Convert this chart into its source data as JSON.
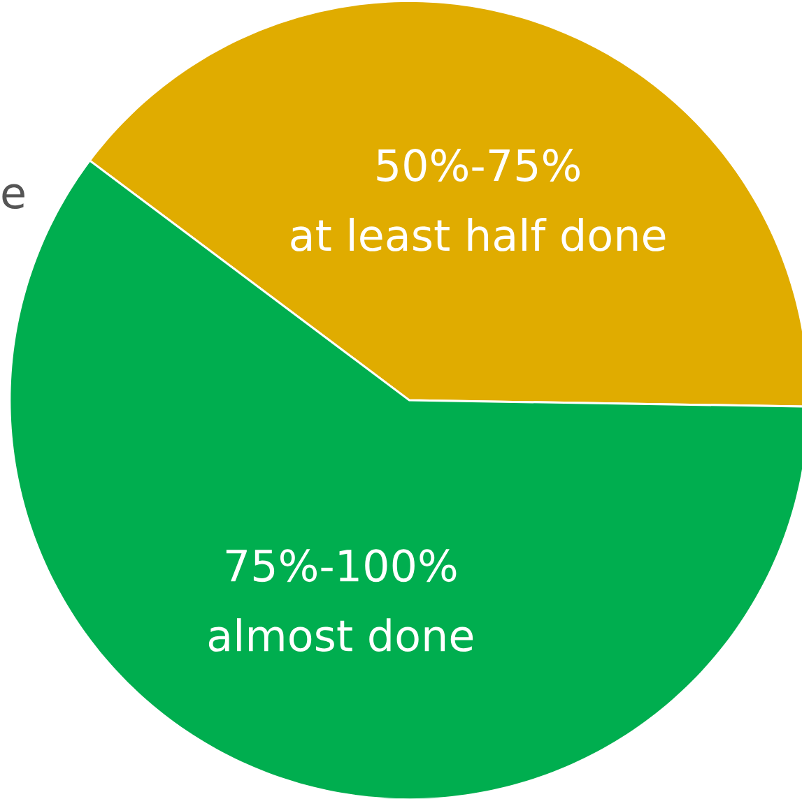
{
  "chart_data": {
    "type": "pie",
    "categories": [
      "50%-75%",
      "75%-100%"
    ],
    "values": [
      40,
      60
    ],
    "colors": [
      "#e0ac00",
      "#00ae4f"
    ],
    "annotations": [
      "at least half done",
      "almost done",
      "e"
    ]
  }
}
